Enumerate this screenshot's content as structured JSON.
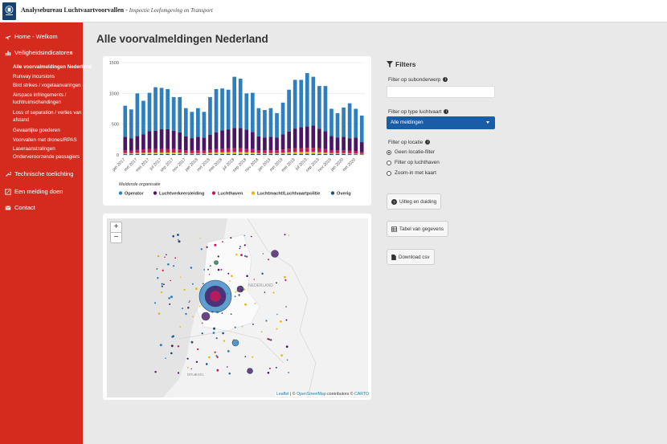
{
  "header": {
    "brand_bold": "Analysebureau Luchtvaartvoorvallen",
    "brand_sep": " - ",
    "brand_italic": "Inspectie Leefomgeving en Transport"
  },
  "sidebar": {
    "home": "Home - Welkom",
    "safety": "Veiligheidsindicatoren",
    "sub_items": [
      {
        "label": "Alle voorvalmeldingen Nederland",
        "active": true
      },
      {
        "label": "Runway incursions"
      },
      {
        "label": "Bird strikes / vogelaanvaringen"
      },
      {
        "label": "Airspace infringements /"
      },
      {
        "label": "luchtruimschendingen"
      },
      {
        "label": "Loss of separation / verlies van"
      },
      {
        "label": "afstand"
      },
      {
        "label": "Gevaarlijke goederen"
      },
      {
        "label": "Voorvallen met drones/RPAS"
      },
      {
        "label": "Laseraanstralingen"
      },
      {
        "label": "Onderveroorzende passagiers"
      }
    ],
    "tech": "Technische toelichting",
    "report": "Een melding doen",
    "contact": "Contact"
  },
  "main": {
    "title": "Alle voorvalmeldingen Nederland"
  },
  "chart_data": {
    "type": "bar",
    "stacked": true,
    "categories": [
      "jan 2017",
      "feb 2017",
      "mrt 2017",
      "apr 2017",
      "mei 2017",
      "jun 2017",
      "jul 2017",
      "aug 2017",
      "sep 2017",
      "okt 2017",
      "nov 2017",
      "dec 2017",
      "jan 2018",
      "feb 2018",
      "mrt 2018",
      "apr 2018",
      "mei 2018",
      "jun 2018",
      "jul 2018",
      "aug 2018",
      "sep 2018",
      "okt 2018",
      "nov 2018",
      "dec 2018",
      "jan 2019",
      "feb 2019",
      "mrt 2019",
      "apr 2019",
      "mei 2019",
      "jun 2019",
      "jul 2019",
      "aug 2019",
      "sep 2019",
      "okt 2019",
      "nov 2019",
      "dec 2019",
      "jan 2020",
      "feb 2020",
      "mrt 2020",
      "apr 2020"
    ],
    "tick_labels": [
      "jan 2017",
      "mrt 2017",
      "mei 2017",
      "jul 2017",
      "sep 2017",
      "nov 2017",
      "jan 2018",
      "mrt 2018",
      "mei 2018",
      "jul 2018",
      "sep 2018",
      "nov 2018",
      "jan 2019",
      "mrt 2019",
      "mei 2019",
      "jul 2019",
      "sep 2019",
      "nov 2019",
      "jan 2020",
      "mrt 2020"
    ],
    "series": [
      {
        "name": "Overig",
        "color": "#1f4e79",
        "values": [
          12,
          12,
          14,
          13,
          15,
          14,
          14,
          15,
          14,
          14,
          12,
          12,
          12,
          12,
          14,
          15,
          15,
          16,
          17,
          17,
          16,
          15,
          13,
          13,
          13,
          13,
          14,
          16,
          17,
          17,
          18,
          18,
          16,
          15,
          13,
          13,
          13,
          12,
          10,
          8
        ]
      },
      {
        "name": "Luchtmacht/Luchtvaartpolitie",
        "color": "#e8b60f",
        "values": [
          18,
          16,
          20,
          22,
          25,
          24,
          26,
          25,
          24,
          22,
          18,
          17,
          18,
          17,
          22,
          26,
          28,
          30,
          30,
          30,
          28,
          24,
          18,
          17,
          18,
          18,
          22,
          28,
          30,
          30,
          32,
          32,
          28,
          24,
          18,
          17,
          17,
          16,
          14,
          10
        ]
      },
      {
        "name": "Luchthaven",
        "color": "#c2185b",
        "values": [
          45,
          44,
          50,
          52,
          55,
          56,
          57,
          58,
          56,
          52,
          45,
          44,
          45,
          44,
          50,
          55,
          58,
          60,
          62,
          62,
          60,
          56,
          46,
          45,
          46,
          44,
          52,
          58,
          62,
          64,
          65,
          66,
          62,
          57,
          47,
          45,
          45,
          44,
          40,
          30
        ]
      },
      {
        "name": "Luchtverkeersleiding",
        "color": "#4a1663",
        "values": [
          220,
          200,
          225,
          250,
          290,
          300,
          320,
          320,
          300,
          280,
          225,
          200,
          220,
          210,
          240,
          270,
          300,
          310,
          330,
          330,
          310,
          280,
          225,
          210,
          220,
          210,
          245,
          280,
          320,
          340,
          350,
          360,
          320,
          290,
          230,
          210,
          220,
          200,
          220,
          160
        ]
      },
      {
        "name": "Operator",
        "color": "#2d7fc1",
        "values": [
          505,
          468,
          691,
          543,
          625,
          706,
          673,
          652,
          546,
          572,
          460,
          427,
          465,
          417,
          614,
          704,
          679,
          644,
          831,
          801,
          586,
          635,
          458,
          445,
          463,
          395,
          517,
          678,
          791,
          769,
          865,
          794,
          694,
          734,
          442,
          395,
          475,
          568,
          466,
          432
        ]
      }
    ],
    "yticks": [
      0,
      500,
      1000,
      1500
    ],
    "ylim": [
      0,
      1500
    ],
    "legend_title": "Meldende organisatie",
    "legend": [
      "Operator",
      "Luchtverkeersleiding",
      "Luchthaven",
      "Luchtmacht/Luchtvaartpolitie",
      "Overig"
    ],
    "legend_colors": [
      "#2d7fc1",
      "#4a1663",
      "#c2185b",
      "#e8b60f",
      "#1f4e79"
    ]
  },
  "map": {
    "zoom_in": "+",
    "zoom_out": "−",
    "label_nederland": "NEDERLAND",
    "label_brussels": "BRUSSEL",
    "attribution_leaflet": "Leaflet",
    "attribution_osm": "OpenStreetMap",
    "attribution_rest": "contributors ©",
    "attribution_carto": "CARTO"
  },
  "filters": {
    "title": "Filters",
    "sub_label": "Filter op subonderwerp",
    "sub_value": "",
    "type_label": "Filter op type luchtvaart",
    "type_value": "Alle meldingen",
    "loc_label": "Filter op locatie",
    "loc_options": [
      {
        "label": "Geen locatie-filter",
        "checked": true
      },
      {
        "label": "Filter op luchthaven",
        "checked": false
      },
      {
        "label": "Zoom-in met kaart",
        "checked": false
      }
    ],
    "btn_explain": "Uitleg en duiding",
    "btn_table": "Tabel van gegevens",
    "btn_download": "Download csv"
  }
}
